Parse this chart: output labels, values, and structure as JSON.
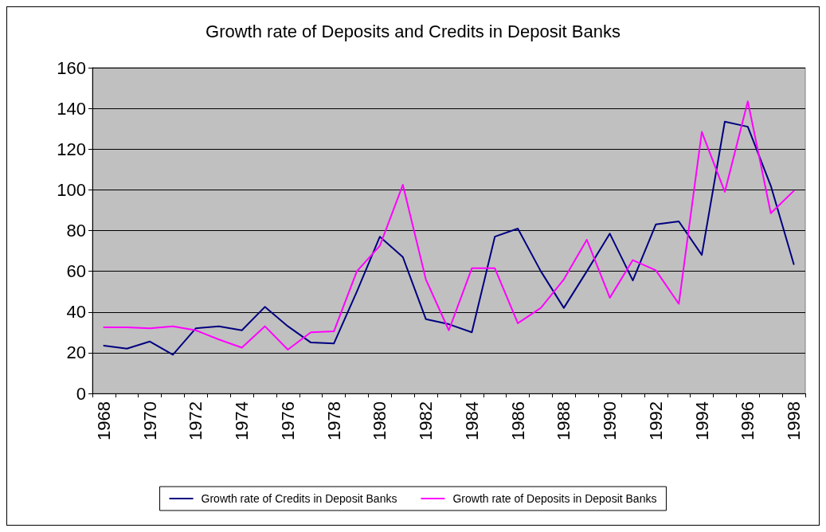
{
  "chart_data": {
    "type": "line",
    "title": "Growth rate of Deposits and Credits in Deposit Banks",
    "categories": [
      "1968",
      null,
      "1970",
      null,
      "1972",
      null,
      "1974",
      null,
      "1976",
      null,
      "1978",
      null,
      "1980",
      null,
      "1982",
      null,
      "1984",
      null,
      "1986",
      null,
      "1988",
      null,
      "1990",
      null,
      "1992",
      null,
      "1994",
      null,
      "1996",
      null,
      "1998"
    ],
    "series": [
      {
        "name": "Growth rate of Credits in Deposit Banks",
        "color": "#000080",
        "values": [
          23.5,
          22,
          25.5,
          19,
          32,
          33,
          31,
          42.5,
          33,
          25,
          24.5,
          50,
          77,
          67,
          36.5,
          34,
          30,
          77,
          81,
          60,
          42,
          60,
          78.5,
          55.5,
          83,
          84.5,
          68,
          133.5,
          131,
          102,
          63.5
        ]
      },
      {
        "name": "Growth rate of Deposits in Deposit Banks",
        "color": "#ff00ff",
        "values": [
          32.5,
          32.5,
          32,
          33,
          31,
          26.5,
          22.5,
          33,
          21.5,
          30,
          30.5,
          60,
          72.5,
          102.5,
          56,
          31,
          61.5,
          61.5,
          34.5,
          42,
          56,
          75.5,
          47,
          65.5,
          60.5,
          44,
          128.5,
          99,
          143.5,
          88.5,
          99.5
        ]
      }
    ],
    "ylim": [
      0,
      160
    ],
    "yticks": [
      0,
      20,
      40,
      60,
      80,
      100,
      120,
      140,
      160
    ],
    "grid": "y",
    "legend": "bottom",
    "marker": "none",
    "line_style": "solid"
  }
}
